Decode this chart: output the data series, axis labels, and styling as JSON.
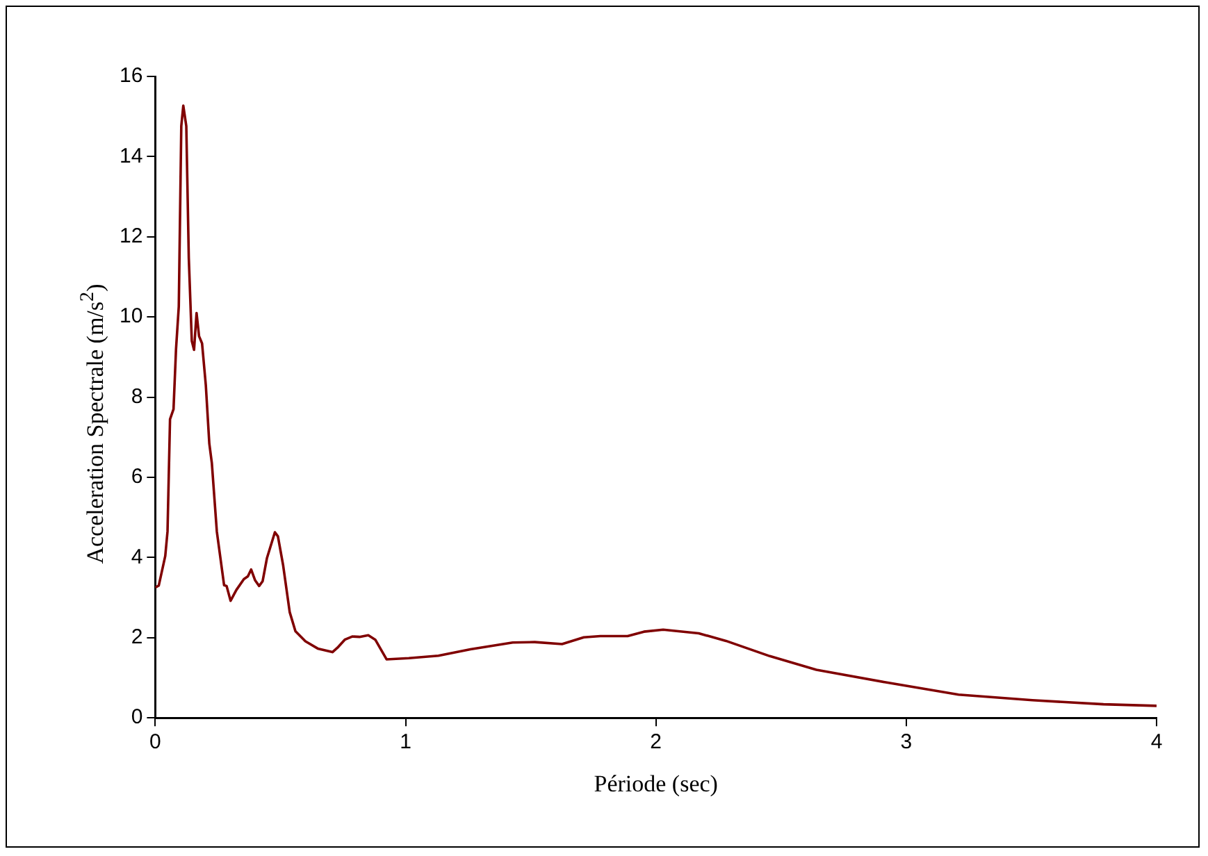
{
  "chart_data": {
    "type": "line",
    "xlabel": "Période (sec)",
    "ylabel": "Acceleration Spectrale (m/s$^{2}$)",
    "x": [
      0,
      0.014,
      0.04,
      0.049,
      0.059,
      0.073,
      0.083,
      0.094,
      0.104,
      0.112,
      0.124,
      0.134,
      0.146,
      0.155,
      0.165,
      0.175,
      0.187,
      0.202,
      0.216,
      0.226,
      0.246,
      0.275,
      0.285,
      0.301,
      0.324,
      0.354,
      0.37,
      0.383,
      0.399,
      0.415,
      0.429,
      0.446,
      0.478,
      0.49,
      0.511,
      0.537,
      0.56,
      0.6,
      0.649,
      0.708,
      0.728,
      0.757,
      0.787,
      0.816,
      0.851,
      0.879,
      0.924,
      1.013,
      1.131,
      1.259,
      1.428,
      1.516,
      1.625,
      1.712,
      1.778,
      1.887,
      1.952,
      2.029,
      2.171,
      2.28,
      2.455,
      2.641,
      2.914,
      3.209,
      3.504,
      3.788,
      4.0
    ],
    "series": [
      {
        "color": "#800000",
        "values": [
          3.25,
          3.3,
          4.04,
          4.65,
          7.45,
          7.7,
          9.2,
          10.26,
          14.76,
          15.27,
          14.76,
          11.47,
          9.4,
          9.18,
          10.1,
          9.52,
          9.34,
          8.3,
          6.84,
          6.36,
          4.65,
          3.31,
          3.29,
          2.92,
          3.19,
          3.46,
          3.53,
          3.7,
          3.43,
          3.29,
          3.41,
          3.98,
          4.63,
          4.53,
          3.8,
          2.64,
          2.16,
          1.91,
          1.73,
          1.64,
          1.75,
          1.95,
          2.03,
          2.02,
          2.06,
          1.95,
          1.46,
          1.49,
          1.55,
          1.71,
          1.88,
          1.89,
          1.84,
          2.01,
          2.04,
          2.04,
          2.15,
          2.2,
          2.11,
          1.92,
          1.54,
          1.2,
          0.89,
          0.58,
          0.44,
          0.34,
          0.3
        ]
      }
    ],
    "xlim": [
      0,
      4
    ],
    "xticks": [
      0,
      1,
      2,
      3,
      4
    ],
    "ylim": [
      0,
      16
    ],
    "yticks": [
      0,
      2,
      4,
      6,
      8,
      10,
      12,
      14,
      16
    ],
    "grid": false,
    "legend": false,
    "marker": "none",
    "line_style": "solid"
  }
}
